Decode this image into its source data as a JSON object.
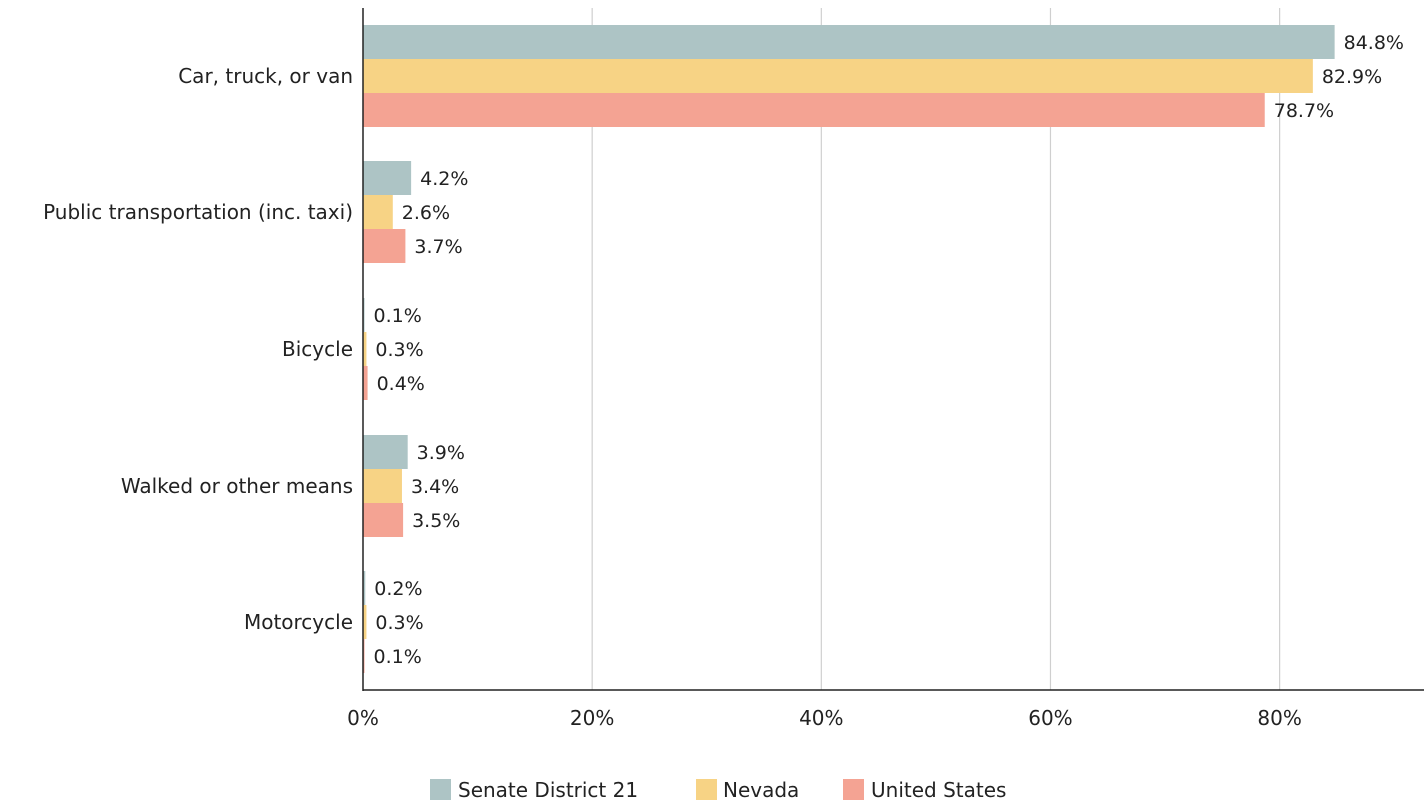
{
  "chart_data": {
    "type": "bar",
    "orientation": "horizontal",
    "title": "",
    "xlabel": "",
    "ylabel": "",
    "categories": [
      "Car, truck, or van",
      "Public transportation (inc. taxi)",
      "Bicycle",
      "Walked or other means",
      "Motorcycle"
    ],
    "series": [
      {
        "name": "Senate District 21",
        "color": "#adc4c5",
        "values": [
          84.8,
          4.2,
          0.1,
          3.9,
          0.2
        ]
      },
      {
        "name": "Nevada",
        "color": "#f7d385",
        "values": [
          82.9,
          2.6,
          0.3,
          3.4,
          0.3
        ]
      },
      {
        "name": "United States",
        "color": "#f4a393",
        "values": [
          78.7,
          3.7,
          0.4,
          3.5,
          0.1
        ]
      }
    ],
    "xlim": [
      0,
      92.6
    ],
    "xticks": [
      0,
      20,
      40,
      60,
      80
    ],
    "tick_labels": [
      "0%",
      "20%",
      "40%",
      "60%",
      "80%"
    ],
    "value_labels": [
      [
        "84.8%",
        "4.2%",
        "0.1%",
        "3.9%",
        "0.2%"
      ],
      [
        "82.9%",
        "2.6%",
        "0.3%",
        "3.4%",
        "0.3%"
      ],
      [
        "78.7%",
        "3.7%",
        "0.4%",
        "3.5%",
        "0.1%"
      ]
    ],
    "grid": "vertical",
    "legend_position": "bottom"
  }
}
